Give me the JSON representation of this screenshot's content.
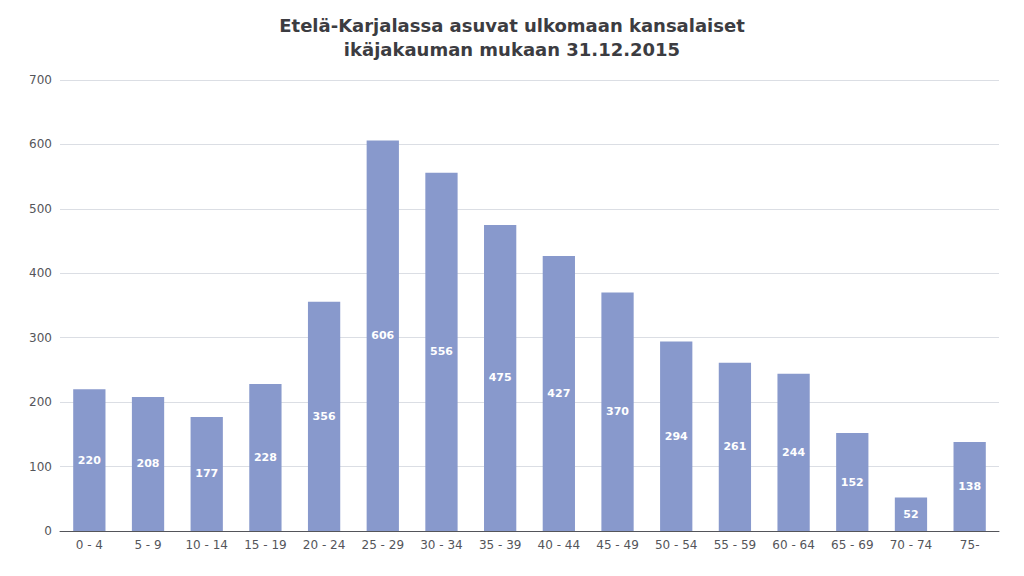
{
  "chart_data": {
    "type": "bar",
    "title": "Etelä-Karjalassa asuvat ulkomaan kansalaiset\nikäjakauman mukaan 31.12.2015",
    "categories": [
      "0 - 4",
      "5 - 9",
      "10 - 14",
      "15 - 19",
      "20 - 24",
      "25 - 29",
      "30 - 34",
      "35 - 39",
      "40 - 44",
      "45 - 49",
      "50 - 54",
      "55 - 59",
      "60 - 64",
      "65 - 69",
      "70 - 74",
      "75-"
    ],
    "values": [
      220,
      208,
      177,
      228,
      356,
      606,
      556,
      475,
      427,
      370,
      294,
      261,
      244,
      152,
      52,
      138
    ],
    "color": "#8899cc",
    "ylim": [
      0,
      700
    ],
    "yticks": [
      0,
      100,
      200,
      300,
      400,
      500,
      600,
      700
    ],
    "grid": true,
    "data_labels": true
  }
}
